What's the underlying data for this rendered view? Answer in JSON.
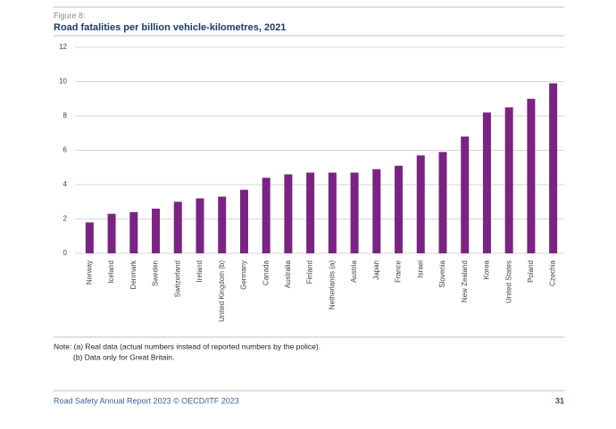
{
  "figure_label": "Figure 8:",
  "chart_data": {
    "type": "bar",
    "title": "Road fatalities per billion vehicle-kilometres, 2021",
    "categories": [
      "Norway",
      "Iceland",
      "Denmark",
      "Sweden",
      "Switzerland",
      "Ireland",
      "United Kingdom (b)",
      "Germany",
      "Canada",
      "Australia",
      "Finland",
      "Netherlands (a)",
      "Austria",
      "Japan",
      "France",
      "Israel",
      "Slovenia",
      "New Zealand",
      "Korea",
      "United States",
      "Poland",
      "Czechia"
    ],
    "values": [
      1.8,
      2.3,
      2.4,
      2.6,
      3.0,
      3.2,
      3.3,
      3.7,
      4.4,
      4.6,
      4.7,
      4.7,
      4.7,
      4.9,
      5.1,
      5.7,
      5.9,
      6.8,
      8.2,
      8.5,
      9.0,
      9.9
    ],
    "color": "#7b2383",
    "ylim": [
      0,
      12
    ],
    "yticks": [
      0,
      2,
      4,
      6,
      8,
      10,
      12
    ],
    "grid": true
  },
  "note": [
    "Note: (a) Real data (actual numbers instead of reported numbers by the police).",
    "(b) Data only for Great Britain."
  ],
  "footer": {
    "source": "Road Safety Annual Report 2023 © OECD/ITF 2023",
    "page": "31"
  }
}
